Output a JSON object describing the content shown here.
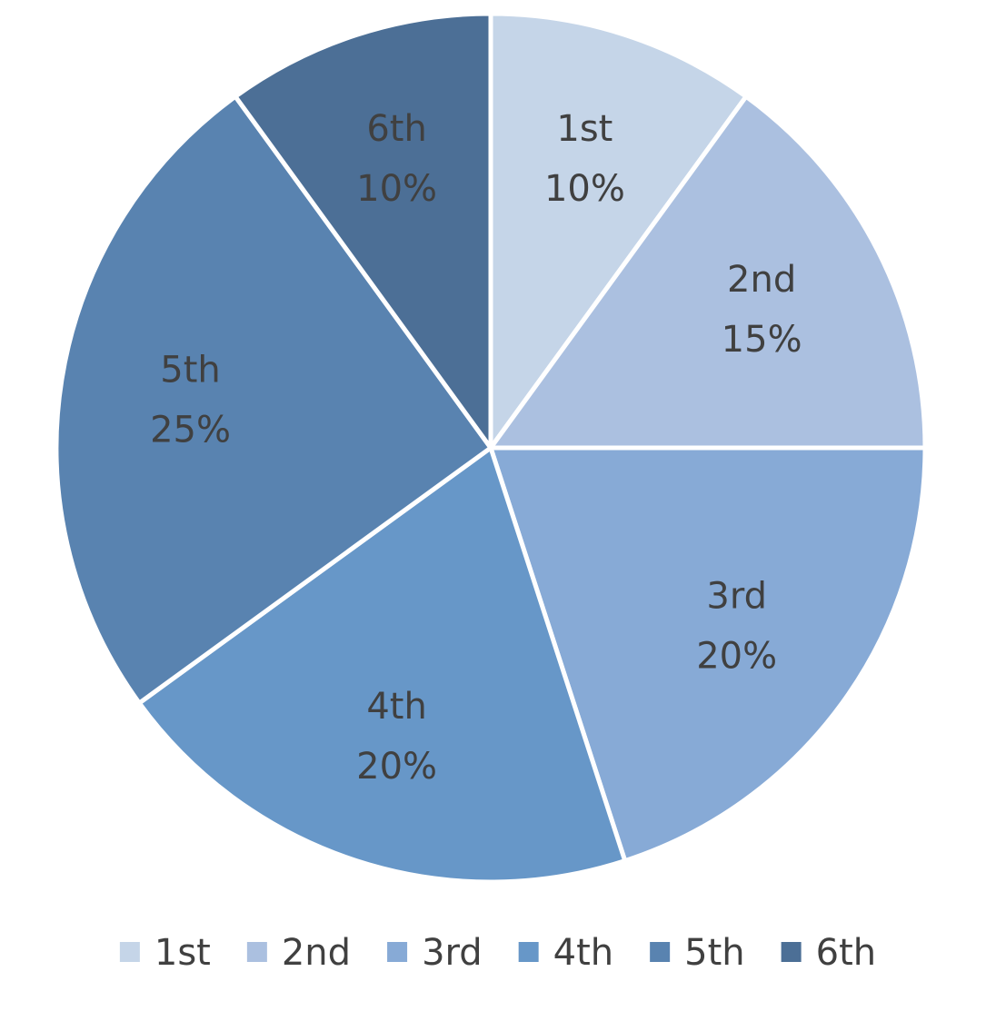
{
  "chart_data": {
    "type": "pie",
    "title": "",
    "categories": [
      "1st",
      "2nd",
      "3rd",
      "4th",
      "5th",
      "6th"
    ],
    "values": [
      10,
      15,
      20,
      20,
      25,
      10
    ],
    "data_labels": [
      "10%",
      "15%",
      "20%",
      "20%",
      "25%",
      "10%"
    ],
    "colors": [
      "#c5d5e8",
      "#abc0e0",
      "#87aad6",
      "#6797c8",
      "#5983b0",
      "#4c6f96"
    ],
    "start_angle_deg": 0,
    "direction": "clockwise",
    "legend": {
      "position": "bottom",
      "entries": [
        "1st",
        "2nd",
        "3rd",
        "4th",
        "5th",
        "6th"
      ]
    }
  }
}
